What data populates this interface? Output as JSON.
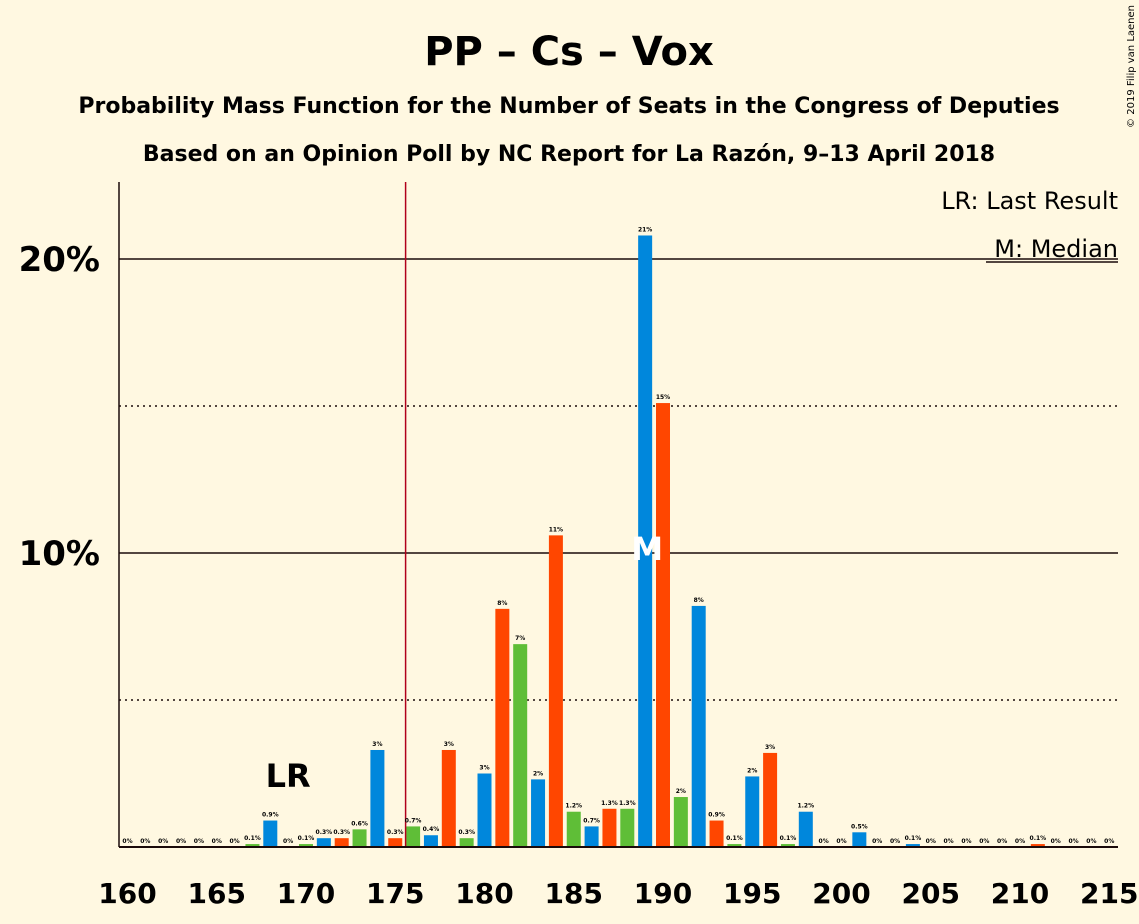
{
  "title": "PP – Cs – Vox",
  "subtitle": "Probability Mass Function for the Number of Seats in the Congress of Deputies",
  "subtitle2": "Based on an Opinion Poll by NC Report for La Razón, 9–13 April 2018",
  "credit": "© 2019 Filip van Laenen",
  "legend": {
    "lr": "LR: Last Result",
    "median": "M: Median"
  },
  "colors": {
    "blue": "#0087dc",
    "green": "#5fbe37",
    "orange": "#ff4600",
    "background": "#fff8e1",
    "lr_line": "#b0001b"
  },
  "chart_data": {
    "type": "bar",
    "xlim": [
      160,
      215
    ],
    "ylim": [
      0,
      22.5
    ],
    "x_ticks": [
      "160",
      "165",
      "170",
      "175",
      "180",
      "185",
      "190",
      "195",
      "200",
      "205",
      "210",
      "215"
    ],
    "y_ticks": [
      {
        "value": 10,
        "label": "10%"
      },
      {
        "value": 20,
        "label": "20%"
      }
    ],
    "dotted_gridlines": [
      5,
      15
    ],
    "last_result": {
      "seat": 169,
      "label": "LR",
      "majority_line": 176
    },
    "median": {
      "seat": 189,
      "label": "M"
    },
    "bars": [
      {
        "seat": 160,
        "value": 0,
        "label": "0%",
        "color": "blue"
      },
      {
        "seat": 161,
        "value": 0,
        "label": "0%",
        "color": "green"
      },
      {
        "seat": 162,
        "value": 0,
        "label": "0%",
        "color": "orange"
      },
      {
        "seat": 163,
        "value": 0,
        "label": "0%",
        "color": "blue"
      },
      {
        "seat": 164,
        "value": 0,
        "label": "0%",
        "color": "green"
      },
      {
        "seat": 165,
        "value": 0,
        "label": "0%",
        "color": "orange"
      },
      {
        "seat": 166,
        "value": 0,
        "label": "0%",
        "color": "blue"
      },
      {
        "seat": 167,
        "value": 0.1,
        "label": "0.1%",
        "color": "green"
      },
      {
        "seat": 168,
        "value": 0.9,
        "label": "0.9%",
        "color": "blue"
      },
      {
        "seat": 169,
        "value": 0,
        "label": "0%",
        "color": "orange"
      },
      {
        "seat": 170,
        "value": 0.1,
        "label": "0.1%",
        "color": "green"
      },
      {
        "seat": 171,
        "value": 0.3,
        "label": "0.3%",
        "color": "blue"
      },
      {
        "seat": 172,
        "value": 0.3,
        "label": "0.3%",
        "color": "orange"
      },
      {
        "seat": 173,
        "value": 0.6,
        "label": "0.6%",
        "color": "green"
      },
      {
        "seat": 174,
        "value": 3.3,
        "label": "3%",
        "color": "blue"
      },
      {
        "seat": 175,
        "value": 0.3,
        "label": "0.3%",
        "color": "orange"
      },
      {
        "seat": 176,
        "value": 0.7,
        "label": "0.7%",
        "color": "green"
      },
      {
        "seat": 177,
        "value": 0.4,
        "label": "0.4%",
        "color": "blue"
      },
      {
        "seat": 178,
        "value": 3.3,
        "label": "3%",
        "color": "orange"
      },
      {
        "seat": 179,
        "value": 0.3,
        "label": "0.3%",
        "color": "green"
      },
      {
        "seat": 180,
        "value": 2.5,
        "label": "3%",
        "color": "blue"
      },
      {
        "seat": 181,
        "value": 8.1,
        "label": "8%",
        "color": "orange"
      },
      {
        "seat": 182,
        "value": 6.9,
        "label": "7%",
        "color": "green"
      },
      {
        "seat": 183,
        "value": 2.3,
        "label": "2%",
        "color": "blue"
      },
      {
        "seat": 184,
        "value": 10.6,
        "label": "11%",
        "color": "orange"
      },
      {
        "seat": 185,
        "value": 1.2,
        "label": "1.2%",
        "color": "green"
      },
      {
        "seat": 186,
        "value": 0.7,
        "label": "0.7%",
        "color": "blue"
      },
      {
        "seat": 187,
        "value": 1.3,
        "label": "1.3%",
        "color": "orange"
      },
      {
        "seat": 188,
        "value": 1.3,
        "label": "1.3%",
        "color": "green"
      },
      {
        "seat": 189,
        "value": 20.8,
        "label": "21%",
        "color": "blue"
      },
      {
        "seat": 190,
        "value": 15.1,
        "label": "15%",
        "color": "orange"
      },
      {
        "seat": 191,
        "value": 1.7,
        "label": "2%",
        "color": "green"
      },
      {
        "seat": 192,
        "value": 8.2,
        "label": "8%",
        "color": "blue"
      },
      {
        "seat": 193,
        "value": 0.9,
        "label": "0.9%",
        "color": "orange"
      },
      {
        "seat": 194,
        "value": 0.1,
        "label": "0.1%",
        "color": "green"
      },
      {
        "seat": 195,
        "value": 2.4,
        "label": "2%",
        "color": "blue"
      },
      {
        "seat": 196,
        "value": 3.2,
        "label": "3%",
        "color": "orange"
      },
      {
        "seat": 197,
        "value": 0.1,
        "label": "0.1%",
        "color": "green"
      },
      {
        "seat": 198,
        "value": 1.2,
        "label": "1.2%",
        "color": "blue"
      },
      {
        "seat": 199,
        "value": 0,
        "label": "0%",
        "color": "orange"
      },
      {
        "seat": 200,
        "value": 0,
        "label": "0%",
        "color": "green"
      },
      {
        "seat": 201,
        "value": 0.5,
        "label": "0.5%",
        "color": "blue"
      },
      {
        "seat": 202,
        "value": 0,
        "label": "0%",
        "color": "orange"
      },
      {
        "seat": 203,
        "value": 0,
        "label": "0%",
        "color": "green"
      },
      {
        "seat": 204,
        "value": 0.1,
        "label": "0.1%",
        "color": "blue"
      },
      {
        "seat": 205,
        "value": 0,
        "label": "0%",
        "color": "orange"
      },
      {
        "seat": 206,
        "value": 0,
        "label": "0%",
        "color": "green"
      },
      {
        "seat": 207,
        "value": 0,
        "label": "0%",
        "color": "blue"
      },
      {
        "seat": 208,
        "value": 0,
        "label": "0%",
        "color": "orange"
      },
      {
        "seat": 209,
        "value": 0,
        "label": "0%",
        "color": "green"
      },
      {
        "seat": 210,
        "value": 0,
        "label": "0%",
        "color": "blue"
      },
      {
        "seat": 211,
        "value": 0.1,
        "label": "0.1%",
        "color": "orange"
      },
      {
        "seat": 212,
        "value": 0,
        "label": "0%",
        "color": "green"
      },
      {
        "seat": 213,
        "value": 0,
        "label": "0%",
        "color": "blue"
      },
      {
        "seat": 214,
        "value": 0,
        "label": "0%",
        "color": "orange"
      },
      {
        "seat": 215,
        "value": 0,
        "label": "0%",
        "color": "green"
      }
    ]
  }
}
